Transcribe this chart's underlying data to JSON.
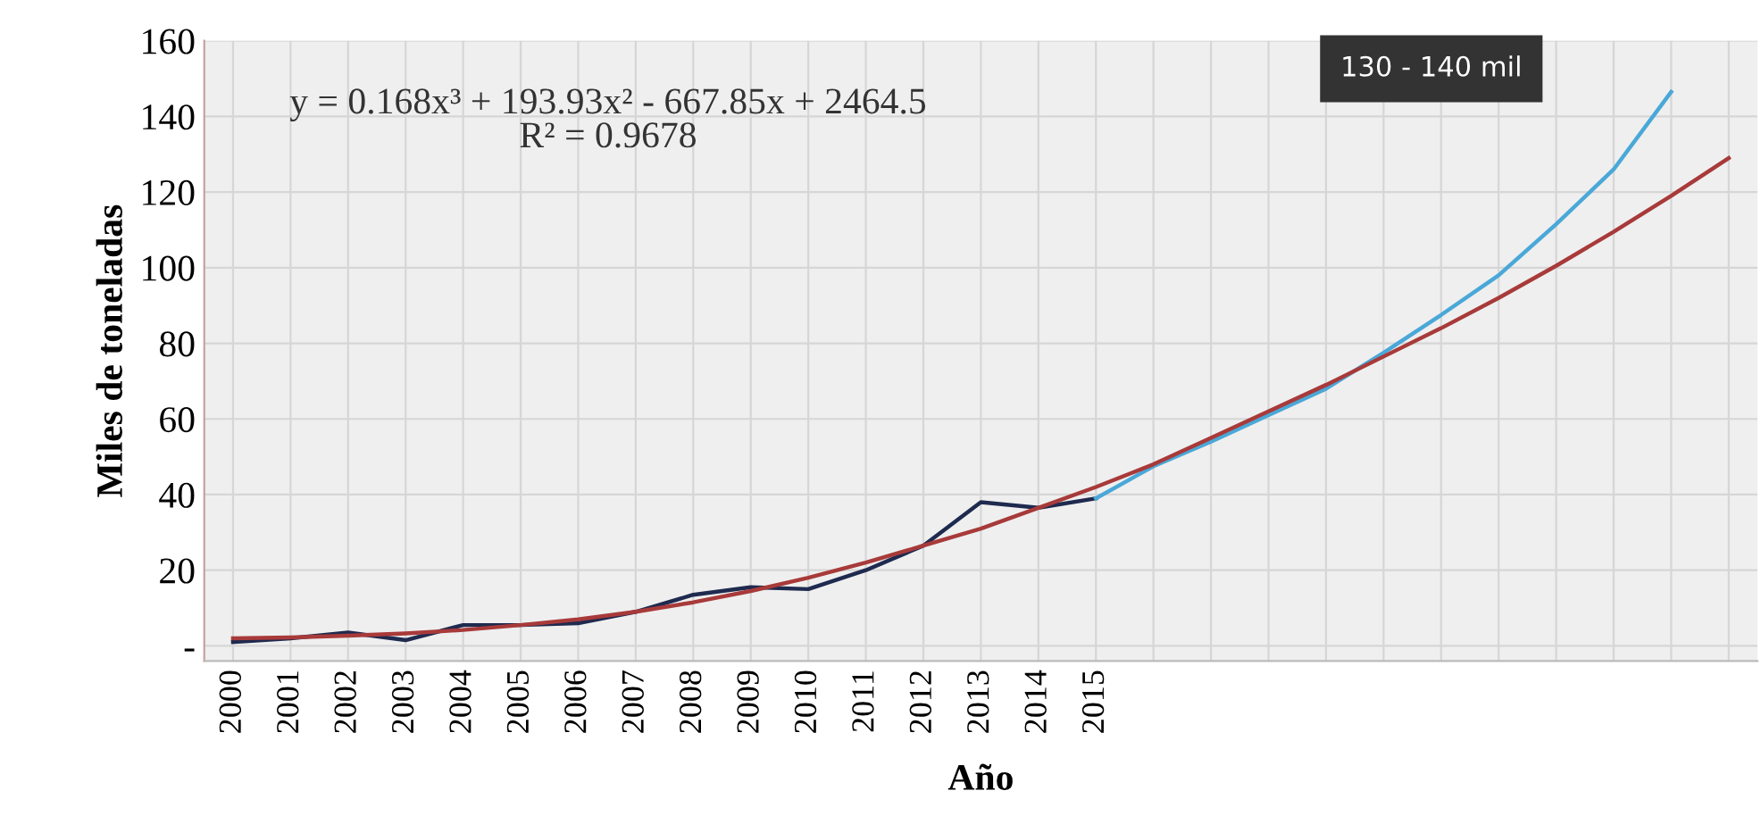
{
  "chart_data": {
    "type": "line",
    "xlabel": "Año",
    "ylabel": "Miles de toneladas",
    "categories": [
      "2000",
      "2001",
      "2002",
      "2003",
      "2004",
      "2005",
      "2006",
      "2007",
      "2008",
      "2009",
      "2010",
      "2011",
      "2012",
      "2013",
      "2014",
      "2015",
      null,
      null,
      null,
      null,
      null,
      null,
      null,
      null,
      null,
      null,
      null
    ],
    "series": [
      {
        "color": "#1f2a4f",
        "values": [
          1,
          2,
          3.5,
          1.5,
          5.5,
          5.5,
          6,
          9,
          13.5,
          15.5,
          15,
          20,
          26.5,
          38,
          36.5,
          39,
          null,
          null,
          null,
          null,
          null,
          null,
          null,
          null,
          null,
          null,
          null
        ]
      },
      {
        "color": "#4aa8d8",
        "values": [
          null,
          null,
          null,
          null,
          null,
          null,
          null,
          null,
          null,
          null,
          null,
          null,
          null,
          null,
          null,
          39,
          47.5,
          54,
          61,
          68,
          77.5,
          87.5,
          98,
          111.5,
          126,
          146.5,
          null
        ]
      },
      {
        "color": "#a83a3a",
        "values": [
          2,
          2.2,
          2.7,
          3.3,
          4.2,
          5.5,
          7,
          9,
          11.5,
          14.5,
          18,
          22,
          26.5,
          31,
          36.5,
          42,
          48,
          55,
          62,
          69,
          76.5,
          84,
          92,
          100.5,
          109.5,
          119,
          129
        ]
      }
    ],
    "ylim": [
      -4,
      160
    ],
    "yticks": [
      {
        "value": 0,
        "label": "-"
      },
      20,
      40,
      60,
      80,
      100,
      120,
      140,
      160
    ],
    "grid": true,
    "marker": "none",
    "line_style": "solid",
    "annotations": [
      "y = 0.168x³ + 193.93x² - 667.85x + 2464.5\nR² = 0.9678",
      "130 - 140 mil"
    ]
  }
}
